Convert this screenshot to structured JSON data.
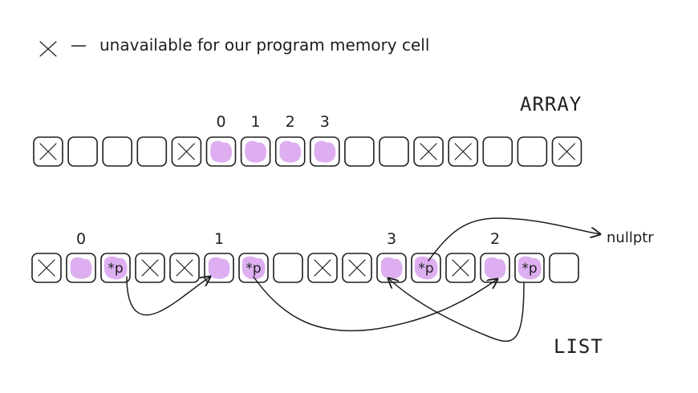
{
  "legend": {
    "symbol": "cross-icon",
    "dash": "—",
    "text": "unavailable for our program memory cell"
  },
  "array": {
    "title": "ARRAY",
    "cells": [
      {
        "state": "unavailable"
      },
      {
        "state": "empty"
      },
      {
        "state": "empty"
      },
      {
        "state": "empty"
      },
      {
        "state": "unavailable"
      },
      {
        "state": "filled",
        "label": "0"
      },
      {
        "state": "filled",
        "label": "1"
      },
      {
        "state": "filled",
        "label": "2"
      },
      {
        "state": "filled",
        "label": "3"
      },
      {
        "state": "empty"
      },
      {
        "state": "empty"
      },
      {
        "state": "unavailable"
      },
      {
        "state": "unavailable"
      },
      {
        "state": "empty"
      },
      {
        "state": "empty"
      },
      {
        "state": "unavailable"
      }
    ]
  },
  "list": {
    "title": "LIST",
    "pointer_label": "*p",
    "null_label": "nullptr",
    "cells": [
      {
        "state": "unavailable"
      },
      {
        "state": "filled",
        "label": "0"
      },
      {
        "state": "pointer"
      },
      {
        "state": "unavailable"
      },
      {
        "state": "unavailable"
      },
      {
        "state": "filled",
        "label": "1"
      },
      {
        "state": "pointer"
      },
      {
        "state": "empty"
      },
      {
        "state": "unavailable"
      },
      {
        "state": "unavailable"
      },
      {
        "state": "filled",
        "label": "3"
      },
      {
        "state": "pointer"
      },
      {
        "state": "unavailable"
      },
      {
        "state": "filled",
        "label": "2"
      },
      {
        "state": "pointer"
      },
      {
        "state": "empty"
      }
    ]
  },
  "colors": {
    "ink": "#1e1e1e",
    "blob": "#d9a6ee"
  }
}
